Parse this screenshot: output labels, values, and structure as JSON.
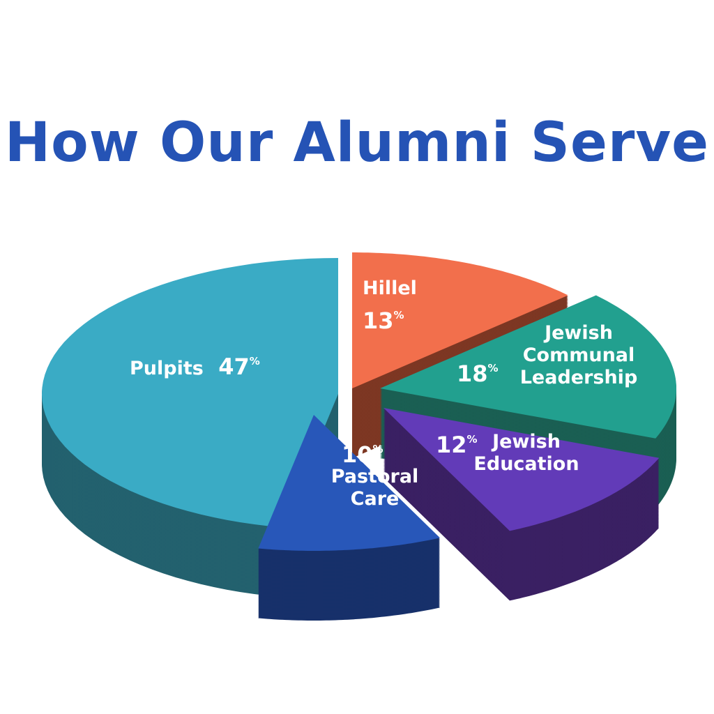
{
  "chart_data": {
    "type": "pie",
    "title": "How Our Alumni Serve",
    "style": "3d-exploded",
    "slices": [
      {
        "label": "Hillel",
        "value": 13,
        "display": "13",
        "color": "#f26f4c",
        "side_color": "#7d3723"
      },
      {
        "label": "Jewish Communal Leadership",
        "display": "18",
        "value": 18,
        "color": "#22a08f",
        "side_color": "#1a5f53"
      },
      {
        "label": "Jewish Education",
        "value": 12,
        "display": "12",
        "color": "#623bb8",
        "side_color": "#3a2063"
      },
      {
        "label": "Pastoral Care",
        "value": 10,
        "display": "10",
        "color": "#2857b9",
        "side_color": "#17306a"
      },
      {
        "label": "Pulpits",
        "value": 47,
        "display": "47",
        "color": "#3aabc5",
        "side_color": "#23616e"
      }
    ],
    "percent_sign": "%"
  }
}
